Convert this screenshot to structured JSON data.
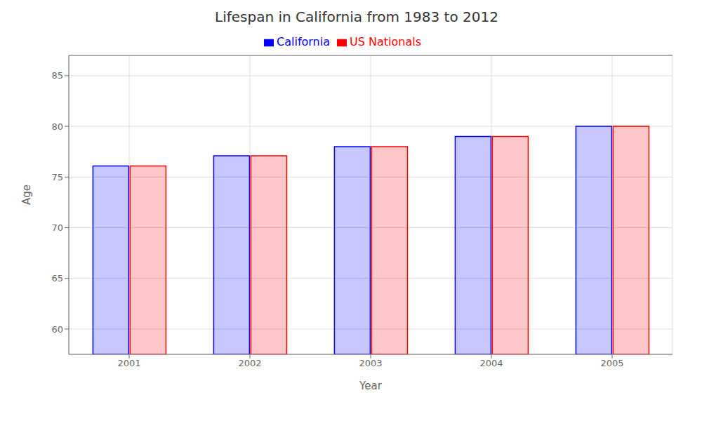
{
  "chart_data": {
    "type": "bar",
    "title": "Lifespan in California from 1983 to 2012",
    "x_label": "Year",
    "y_label": "Age",
    "categories": [
      "2001",
      "2002",
      "2003",
      "2004",
      "2005"
    ],
    "series": [
      {
        "name": "California",
        "color": "#0000ff",
        "values": [
          76.1,
          77.1,
          78.0,
          79.0,
          80.0
        ]
      },
      {
        "name": "US Nationals",
        "color": "#ff0000",
        "values": [
          76.1,
          77.1,
          78.0,
          79.0,
          80.0
        ]
      }
    ],
    "ylim": [
      57.5,
      87
    ],
    "yticks": [
      60,
      65,
      70,
      75,
      80,
      85
    ],
    "grid": true,
    "legend": "top"
  }
}
